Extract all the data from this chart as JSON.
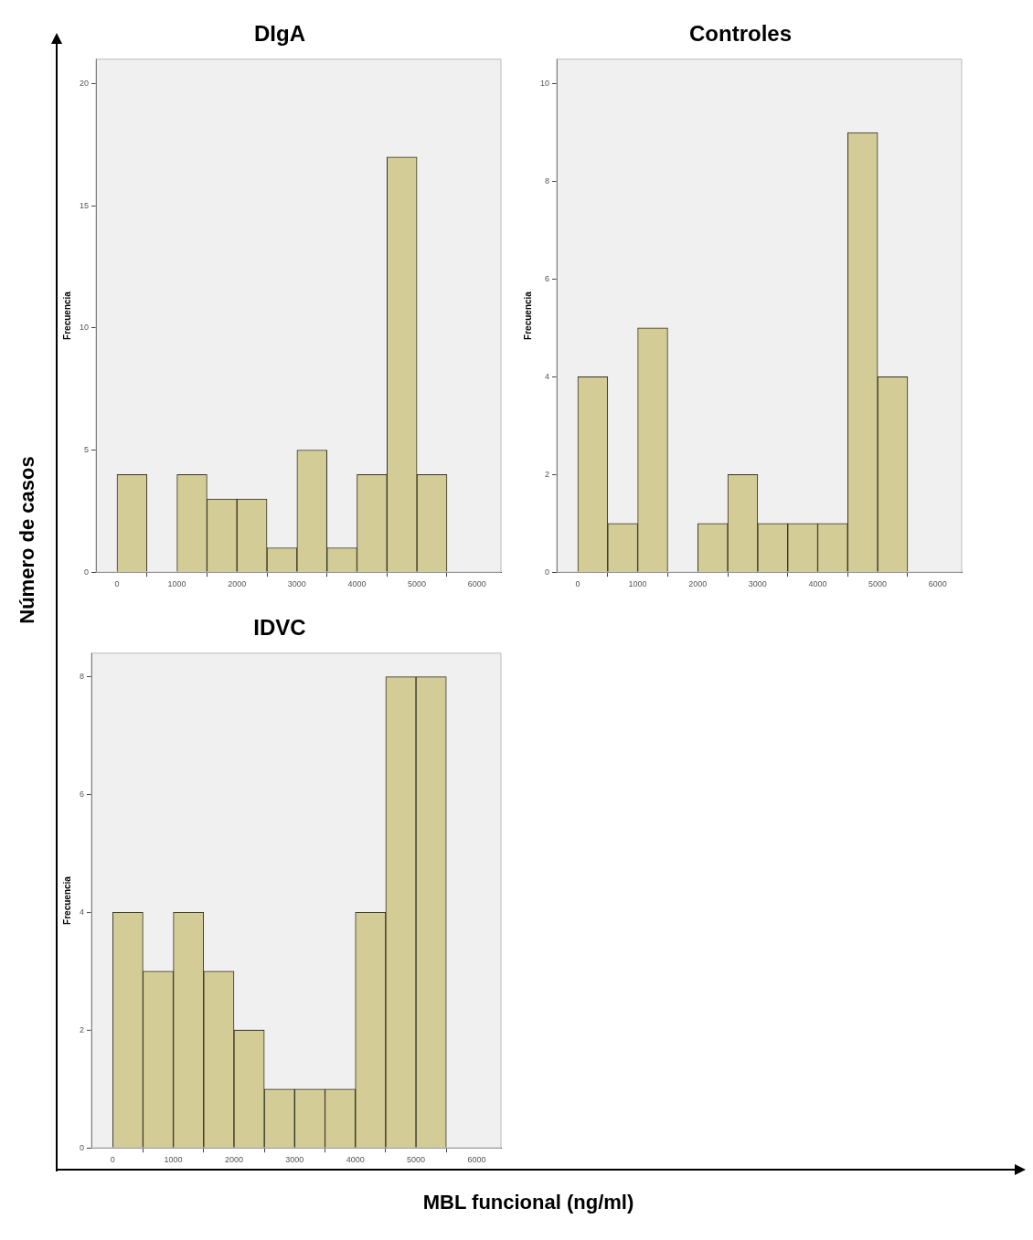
{
  "chart_data": [
    {
      "type": "histogram",
      "title": "DIgA",
      "ylabel": "Frecuencia",
      "bins": [
        0,
        500,
        1000,
        1500,
        2000,
        2500,
        3000,
        3500,
        4000,
        4500,
        5000,
        5500
      ],
      "values": [
        4,
        0,
        4,
        3,
        3,
        1,
        5,
        1,
        4,
        17,
        4
      ],
      "color": "#d3cc96",
      "xlim": [
        -350,
        6400
      ],
      "xticks": [
        0,
        1000,
        2000,
        3000,
        4000,
        5000,
        6000
      ],
      "ylim": [
        0,
        21
      ],
      "yticks": [
        0,
        5,
        10,
        15,
        20
      ],
      "annotations": [
        "Número de casos",
        "MBL funcional (ng/ml)"
      ]
    },
    {
      "type": "histogram",
      "title": "Controles",
      "ylabel": "Frecuencia",
      "bins": [
        0,
        500,
        1000,
        1500,
        2000,
        2500,
        3000,
        3500,
        4000,
        4500,
        5000,
        5500
      ],
      "values": [
        4,
        1,
        5,
        0,
        1,
        2,
        1,
        1,
        1,
        9,
        4
      ],
      "color": "#d3cc96",
      "xlim": [
        -350,
        6400
      ],
      "xticks": [
        0,
        1000,
        2000,
        3000,
        4000,
        5000,
        6000
      ],
      "ylim": [
        0,
        10.5
      ],
      "yticks": [
        0,
        2,
        4,
        6,
        8,
        10
      ]
    },
    {
      "type": "histogram",
      "title": "IDVC",
      "ylabel": "Frecuencia",
      "bins": [
        0,
        500,
        1000,
        1500,
        2000,
        2500,
        3000,
        3500,
        4000,
        4500,
        5000,
        5500
      ],
      "values": [
        4,
        3,
        4,
        3,
        2,
        1,
        1,
        1,
        4,
        8,
        8
      ],
      "color": "#d3cc96",
      "xlim": [
        -350,
        6400
      ],
      "xticks": [
        0,
        1000,
        2000,
        3000,
        4000,
        5000,
        6000
      ],
      "ylim": [
        0,
        8.4
      ],
      "yticks": [
        0,
        2,
        4,
        6,
        8
      ]
    }
  ]
}
